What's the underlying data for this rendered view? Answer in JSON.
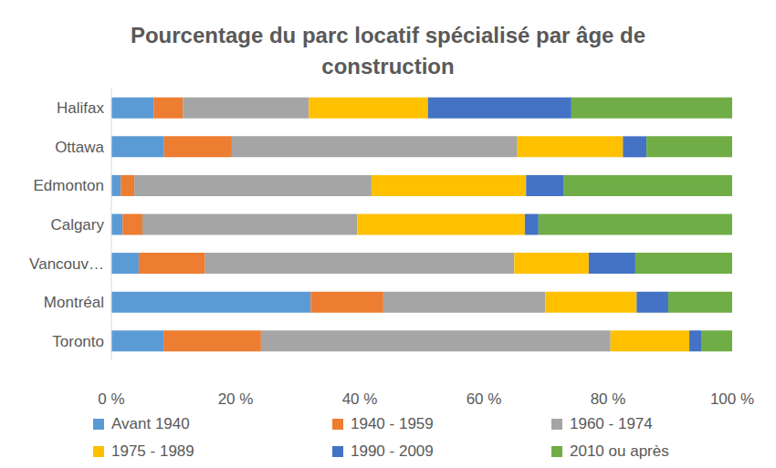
{
  "chart_data": {
    "type": "bar",
    "title": "Pourcentage du parc locatif spécialisé par âge de construction",
    "orientation": "horizontal",
    "stacked": true,
    "grid": false,
    "legend": "bottom",
    "categories": [
      "Halifax",
      "Ottawa",
      "Edmonton",
      "Calgary",
      "Vancouv…",
      "Montréal",
      "Toronto"
    ],
    "series": [
      {
        "name": "Avant 1940",
        "color": "#5B9BD5",
        "values": [
          6.8,
          8.5,
          1.5,
          1.8,
          4.4,
          32.1,
          8.4
        ]
      },
      {
        "name": "1940 - 1959",
        "color": "#ED7D31",
        "values": [
          4.7,
          10.9,
          2.2,
          3.2,
          10.7,
          11.7,
          15.7
        ]
      },
      {
        "name": "1960 - 1974",
        "color": "#A5A5A5",
        "values": [
          20.3,
          46.0,
          38.2,
          34.6,
          49.8,
          26.1,
          56.3
        ]
      },
      {
        "name": "1975 - 1989",
        "color": "#FFC000",
        "values": [
          19.2,
          17.0,
          24.9,
          27.0,
          12.0,
          14.7,
          12.7
        ]
      },
      {
        "name": "1990 - 2009",
        "color": "#4472C4",
        "values": [
          23.1,
          3.8,
          6.1,
          2.2,
          7.5,
          5.1,
          1.9
        ]
      },
      {
        "name": "2010 ou après",
        "color": "#70AD47",
        "values": [
          25.9,
          13.8,
          27.1,
          31.2,
          15.6,
          10.3,
          5.0
        ]
      }
    ],
    "xlim": [
      0,
      100
    ],
    "xticks": [
      {
        "value": 0,
        "label": "0 %"
      },
      {
        "value": 20,
        "label": "20 %"
      },
      {
        "value": 40,
        "label": "40 %"
      },
      {
        "value": 60,
        "label": "60 %"
      },
      {
        "value": 80,
        "label": "80 %"
      },
      {
        "value": 100,
        "label": "100 %"
      }
    ]
  }
}
